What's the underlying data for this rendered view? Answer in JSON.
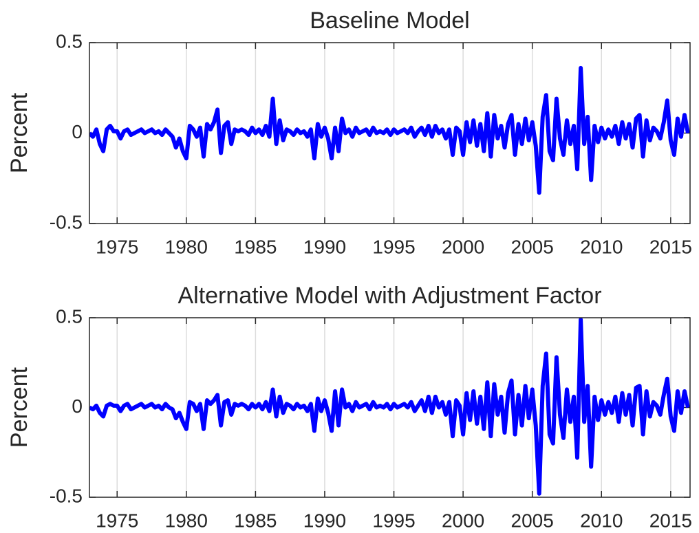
{
  "chart_data": [
    {
      "type": "line",
      "title": "Baseline Model",
      "ylabel": "Percent",
      "color": "#0000ff",
      "xlim": [
        1973,
        2016.4
      ],
      "xticks": [
        1975,
        1980,
        1985,
        1990,
        1995,
        2000,
        2005,
        2010,
        2015
      ],
      "xgrid": true,
      "ylim": [
        -0.5,
        0.5
      ],
      "yticks": [
        -0.5,
        0,
        0.5
      ],
      "x": [
        1973,
        1973.25,
        1973.5,
        1973.75,
        1974,
        1974.25,
        1974.5,
        1974.75,
        1975,
        1975.25,
        1975.5,
        1975.75,
        1976,
        1976.25,
        1976.5,
        1976.75,
        1977,
        1977.25,
        1977.5,
        1977.75,
        1978,
        1978.25,
        1978.5,
        1978.75,
        1979,
        1979.25,
        1979.5,
        1979.75,
        1980,
        1980.25,
        1980.5,
        1980.75,
        1981,
        1981.25,
        1981.5,
        1981.75,
        1982,
        1982.25,
        1982.5,
        1982.75,
        1983,
        1983.25,
        1983.5,
        1983.75,
        1984,
        1984.25,
        1984.5,
        1984.75,
        1985,
        1985.25,
        1985.5,
        1985.75,
        1986,
        1986.25,
        1986.5,
        1986.75,
        1987,
        1987.25,
        1987.5,
        1987.75,
        1988,
        1988.25,
        1988.5,
        1988.75,
        1989,
        1989.25,
        1989.5,
        1989.75,
        1990,
        1990.25,
        1990.5,
        1990.75,
        1991,
        1991.25,
        1991.5,
        1991.75,
        1992,
        1992.25,
        1992.5,
        1992.75,
        1993,
        1993.25,
        1993.5,
        1993.75,
        1994,
        1994.25,
        1994.5,
        1994.75,
        1995,
        1995.25,
        1995.5,
        1995.75,
        1996,
        1996.25,
        1996.5,
        1996.75,
        1997,
        1997.25,
        1997.5,
        1997.75,
        1998,
        1998.25,
        1998.5,
        1998.75,
        1999,
        1999.25,
        1999.5,
        1999.75,
        2000,
        2000.25,
        2000.5,
        2000.75,
        2001,
        2001.25,
        2001.5,
        2001.75,
        2002,
        2002.25,
        2002.5,
        2002.75,
        2003,
        2003.25,
        2003.5,
        2003.75,
        2004,
        2004.25,
        2004.5,
        2004.75,
        2005,
        2005.25,
        2005.5,
        2005.75,
        2006,
        2006.25,
        2006.5,
        2006.75,
        2007,
        2007.25,
        2007.5,
        2007.75,
        2008,
        2008.25,
        2008.5,
        2008.75,
        2009,
        2009.25,
        2009.5,
        2009.75,
        2010,
        2010.25,
        2010.5,
        2010.75,
        2011,
        2011.25,
        2011.5,
        2011.75,
        2012,
        2012.25,
        2012.5,
        2012.75,
        2013,
        2013.25,
        2013.5,
        2013.75,
        2014,
        2014.25,
        2014.5,
        2014.75,
        2015,
        2015.25,
        2015.5,
        2015.75,
        2016,
        2016.25
      ],
      "values": [
        0,
        -0.02,
        0.02,
        -0.06,
        -0.1,
        0.02,
        0.04,
        0.01,
        0.01,
        -0.03,
        0.01,
        0.02,
        -0.01,
        0,
        0.01,
        0.02,
        0,
        0.01,
        0.02,
        0,
        0.01,
        -0.01,
        0.02,
        0,
        -0.02,
        -0.08,
        -0.03,
        -0.1,
        -0.14,
        0.04,
        0.02,
        -0.02,
        0.03,
        -0.13,
        0.05,
        0.02,
        0.06,
        0.13,
        -0.11,
        0.04,
        0.06,
        -0.06,
        0.02,
        0.01,
        0.02,
        0.01,
        -0.01,
        0.03,
        0,
        0.02,
        -0.01,
        0.04,
        -0.02,
        0.19,
        -0.06,
        0.07,
        -0.04,
        0.02,
        0.01,
        -0.01,
        0.02,
        0,
        0.01,
        -0.02,
        0.02,
        -0.14,
        0.05,
        -0.02,
        0.03,
        -0.03,
        -0.14,
        0.03,
        -0.1,
        0.08,
        0,
        0.02,
        -0.02,
        0.03,
        0,
        0.01,
        0.02,
        -0.01,
        0.03,
        0,
        0.01,
        0,
        0.02,
        -0.01,
        0.02,
        0,
        0.01,
        0.02,
        0,
        0.03,
        -0.02,
        0.01,
        0.03,
        -0.01,
        0.04,
        -0.02,
        0.04,
        0,
        0.02,
        -0.03,
        0.02,
        -0.12,
        0.03,
        0.01,
        -0.12,
        0.06,
        -0.05,
        0.07,
        -0.07,
        0.05,
        -0.1,
        0.11,
        -0.13,
        0.1,
        -0.03,
        0.04,
        -0.08,
        0.05,
        0.1,
        -0.12,
        0.05,
        -0.06,
        0.08,
        -0.04,
        0.06,
        -0.07,
        -0.33,
        0.09,
        0.21,
        -0.1,
        -0.15,
        0.19,
        -0.03,
        -0.12,
        0.07,
        -0.06,
        0.04,
        -0.2,
        0.36,
        -0.06,
        0.09,
        -0.26,
        0.04,
        -0.05,
        0.03,
        -0.03,
        0.02,
        -0.02,
        0.04,
        -0.06,
        0.06,
        -0.03,
        0.05,
        -0.08,
        0.08,
        0.1,
        -0.13,
        0.07,
        -0.04,
        0.03,
        0.01,
        -0.03,
        0.06,
        0.18,
        -0.04,
        -0.12,
        0.08,
        -0.02,
        0.1,
        0
      ]
    },
    {
      "type": "line",
      "title": "Alternative Model with Adjustment Factor",
      "ylabel": "Percent",
      "color": "#0000ff",
      "xlim": [
        1973,
        2016.4
      ],
      "xticks": [
        1975,
        1980,
        1985,
        1990,
        1995,
        2000,
        2005,
        2010,
        2015
      ],
      "xgrid": true,
      "ylim": [
        -0.5,
        0.5
      ],
      "yticks": [
        -0.5,
        0,
        0.5
      ],
      "x": [
        1973,
        1973.25,
        1973.5,
        1973.75,
        1974,
        1974.25,
        1974.5,
        1974.75,
        1975,
        1975.25,
        1975.5,
        1975.75,
        1976,
        1976.25,
        1976.5,
        1976.75,
        1977,
        1977.25,
        1977.5,
        1977.75,
        1978,
        1978.25,
        1978.5,
        1978.75,
        1979,
        1979.25,
        1979.5,
        1979.75,
        1980,
        1980.25,
        1980.5,
        1980.75,
        1981,
        1981.25,
        1981.5,
        1981.75,
        1982,
        1982.25,
        1982.5,
        1982.75,
        1983,
        1983.25,
        1983.5,
        1983.75,
        1984,
        1984.25,
        1984.5,
        1984.75,
        1985,
        1985.25,
        1985.5,
        1985.75,
        1986,
        1986.25,
        1986.5,
        1986.75,
        1987,
        1987.25,
        1987.5,
        1987.75,
        1988,
        1988.25,
        1988.5,
        1988.75,
        1989,
        1989.25,
        1989.5,
        1989.75,
        1990,
        1990.25,
        1990.5,
        1990.75,
        1991,
        1991.25,
        1991.5,
        1991.75,
        1992,
        1992.25,
        1992.5,
        1992.75,
        1993,
        1993.25,
        1993.5,
        1993.75,
        1994,
        1994.25,
        1994.5,
        1994.75,
        1995,
        1995.25,
        1995.5,
        1995.75,
        1996,
        1996.25,
        1996.5,
        1996.75,
        1997,
        1997.25,
        1997.5,
        1997.75,
        1998,
        1998.25,
        1998.5,
        1998.75,
        1999,
        1999.25,
        1999.5,
        1999.75,
        2000,
        2000.25,
        2000.5,
        2000.75,
        2001,
        2001.25,
        2001.5,
        2001.75,
        2002,
        2002.25,
        2002.5,
        2002.75,
        2003,
        2003.25,
        2003.5,
        2003.75,
        2004,
        2004.25,
        2004.5,
        2004.75,
        2005,
        2005.25,
        2005.5,
        2005.75,
        2006,
        2006.25,
        2006.5,
        2006.75,
        2007,
        2007.25,
        2007.5,
        2007.75,
        2008,
        2008.25,
        2008.5,
        2008.75,
        2009,
        2009.25,
        2009.5,
        2009.75,
        2010,
        2010.25,
        2010.5,
        2010.75,
        2011,
        2011.25,
        2011.5,
        2011.75,
        2012,
        2012.25,
        2012.5,
        2012.75,
        2013,
        2013.25,
        2013.5,
        2013.75,
        2014,
        2014.25,
        2014.5,
        2014.75,
        2015,
        2015.25,
        2015.5,
        2015.75,
        2016,
        2016.25
      ],
      "values": [
        0,
        -0.01,
        0.01,
        -0.03,
        -0.05,
        0.01,
        0.02,
        0.01,
        0.01,
        -0.02,
        0.01,
        0.02,
        -0.01,
        0,
        0.01,
        0.02,
        0,
        0.01,
        0.02,
        0,
        0.01,
        -0.01,
        0.02,
        0,
        -0.01,
        -0.06,
        -0.03,
        -0.08,
        -0.12,
        0.03,
        0.02,
        -0.02,
        0.02,
        -0.12,
        0.04,
        0.02,
        0.04,
        0.07,
        -0.1,
        0.03,
        0.04,
        -0.04,
        0.02,
        0.01,
        0.02,
        0.01,
        -0.01,
        0.02,
        0,
        0.02,
        -0.01,
        0.03,
        -0.02,
        0.1,
        -0.05,
        0.06,
        -0.03,
        0.02,
        0.01,
        -0.01,
        0.02,
        0,
        0.01,
        -0.02,
        0.02,
        -0.13,
        0.05,
        -0.02,
        0.04,
        -0.03,
        -0.13,
        0.09,
        -0.1,
        0.1,
        0,
        0.02,
        -0.02,
        0.03,
        0,
        0.01,
        0.02,
        -0.01,
        0.03,
        0,
        0.01,
        0,
        0.02,
        -0.01,
        0.02,
        0,
        0.01,
        0.02,
        0,
        0.03,
        -0.02,
        0.01,
        0.04,
        -0.02,
        0.06,
        -0.03,
        0.06,
        0,
        0.03,
        -0.04,
        0.03,
        -0.16,
        0.04,
        0.01,
        -0.15,
        0.08,
        -0.07,
        0.09,
        -0.09,
        0.06,
        -0.12,
        0.14,
        -0.16,
        0.13,
        -0.04,
        0.06,
        -0.14,
        0.08,
        0.15,
        -0.15,
        0.07,
        -0.1,
        0.12,
        -0.06,
        0.1,
        -0.1,
        -0.48,
        0.12,
        0.3,
        -0.15,
        -0.2,
        0.28,
        -0.04,
        -0.17,
        0.1,
        -0.08,
        0.06,
        -0.28,
        0.49,
        -0.08,
        0.12,
        -0.33,
        0.06,
        -0.07,
        0.04,
        -0.04,
        0.03,
        -0.03,
        0.06,
        -0.08,
        0.08,
        -0.04,
        0.07,
        -0.1,
        0.11,
        0.12,
        -0.15,
        0.09,
        -0.05,
        0.03,
        0.01,
        -0.04,
        0.07,
        0.16,
        -0.05,
        -0.13,
        0.09,
        -0.03,
        0.09,
        0
      ]
    }
  ]
}
